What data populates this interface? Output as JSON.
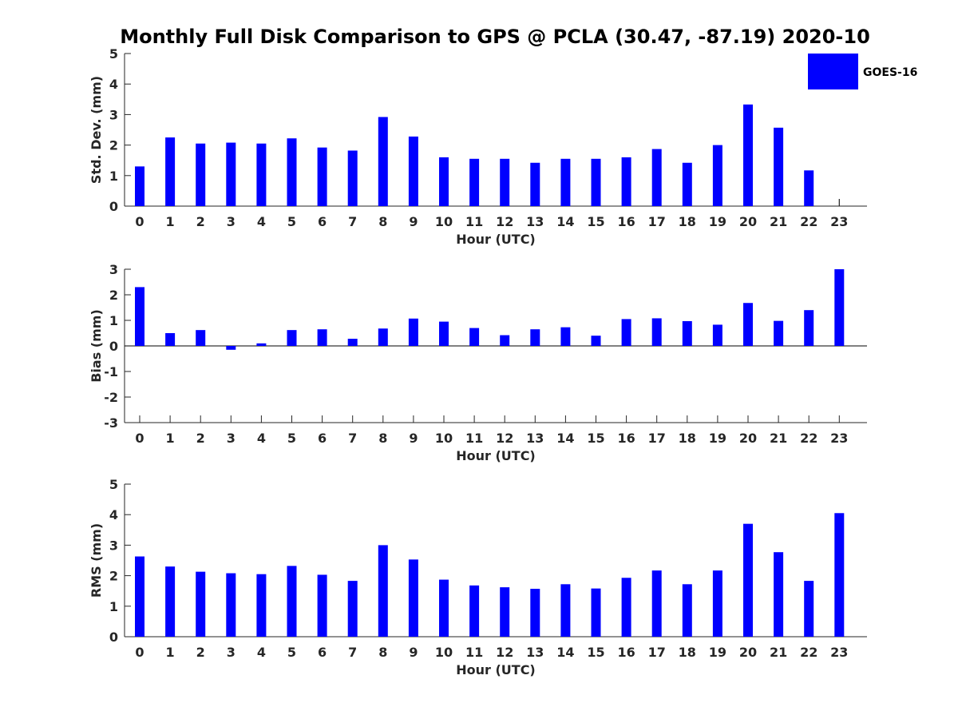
{
  "chart_data": [
    {
      "type": "bar",
      "title": "Monthly Full Disk Comparison to GPS @ PCLA (30.47, -87.19) 2020-10",
      "xlabel": "Hour (UTC)",
      "ylabel": "Std. Dev. (mm)",
      "ylim": [
        0,
        5
      ],
      "yticks": [
        0,
        1,
        2,
        3,
        4,
        5
      ],
      "categories": [
        "0",
        "1",
        "2",
        "3",
        "4",
        "5",
        "6",
        "7",
        "8",
        "9",
        "10",
        "11",
        "12",
        "13",
        "14",
        "15",
        "16",
        "17",
        "18",
        "19",
        "20",
        "21",
        "22",
        "23"
      ],
      "series": [
        {
          "name": "GOES-16",
          "color": "#0000ff",
          "values": [
            1.3,
            2.25,
            2.05,
            2.08,
            2.05,
            2.22,
            1.92,
            1.82,
            2.92,
            2.28,
            1.6,
            1.55,
            1.55,
            1.42,
            1.55,
            1.55,
            1.6,
            1.87,
            1.42,
            2.0,
            3.33,
            2.57,
            1.17,
            null
          ]
        }
      ],
      "legend": {
        "placement": "top-right"
      }
    },
    {
      "type": "bar",
      "xlabel": "Hour (UTC)",
      "ylabel": "Bias (mm)",
      "ylim": [
        -3,
        3
      ],
      "yticks": [
        -3,
        -2,
        -1,
        0,
        1,
        2,
        3
      ],
      "categories": [
        "0",
        "1",
        "2",
        "3",
        "4",
        "5",
        "6",
        "7",
        "8",
        "9",
        "10",
        "11",
        "12",
        "13",
        "14",
        "15",
        "16",
        "17",
        "18",
        "19",
        "20",
        "21",
        "22",
        "23"
      ],
      "series": [
        {
          "name": "GOES-16",
          "color": "#0000ff",
          "values": [
            2.3,
            0.5,
            0.62,
            -0.15,
            0.1,
            0.62,
            0.65,
            0.28,
            0.68,
            1.07,
            0.95,
            0.7,
            0.42,
            0.65,
            0.73,
            0.4,
            1.05,
            1.08,
            0.97,
            0.83,
            1.68,
            0.98,
            1.4,
            3.0
          ]
        }
      ]
    },
    {
      "type": "bar",
      "xlabel": "Hour (UTC)",
      "ylabel": "RMS (mm)",
      "ylim": [
        0,
        5
      ],
      "yticks": [
        0,
        1,
        2,
        3,
        4,
        5
      ],
      "categories": [
        "0",
        "1",
        "2",
        "3",
        "4",
        "5",
        "6",
        "7",
        "8",
        "9",
        "10",
        "11",
        "12",
        "13",
        "14",
        "15",
        "16",
        "17",
        "18",
        "19",
        "20",
        "21",
        "22",
        "23"
      ],
      "series": [
        {
          "name": "GOES-16",
          "color": "#0000ff",
          "values": [
            2.63,
            2.3,
            2.13,
            2.08,
            2.05,
            2.32,
            2.03,
            1.83,
            3.0,
            2.53,
            1.87,
            1.68,
            1.62,
            1.57,
            1.72,
            1.58,
            1.93,
            2.17,
            1.72,
            2.17,
            3.7,
            2.77,
            1.83,
            4.05
          ]
        }
      ]
    }
  ]
}
